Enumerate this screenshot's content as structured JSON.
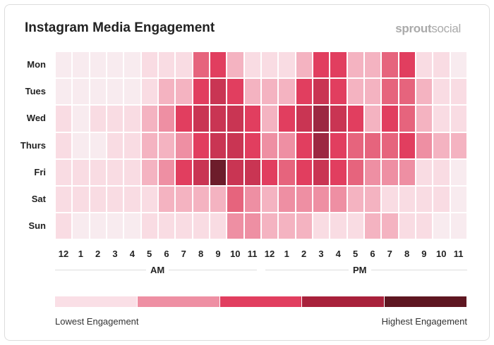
{
  "title": "Instagram Media Engagement",
  "logo": {
    "bold": "sprout",
    "light": "social"
  },
  "chart_data": {
    "type": "heatmap",
    "title": "Instagram Media Engagement",
    "rows": [
      "Mon",
      "Tues",
      "Wed",
      "Thurs",
      "Fri",
      "Sat",
      "Sun"
    ],
    "columns": [
      "12",
      "1",
      "2",
      "3",
      "4",
      "5",
      "6",
      "7",
      "8",
      "9",
      "10",
      "11",
      "12",
      "1",
      "2",
      "3",
      "4",
      "5",
      "6",
      "7",
      "8",
      "9",
      "10",
      "11"
    ],
    "column_groups": [
      "AM",
      "PM"
    ],
    "values": [
      [
        0,
        0,
        0,
        0,
        0,
        1,
        1,
        1,
        4,
        5,
        2,
        1,
        1,
        1,
        2,
        5,
        5,
        2,
        2,
        4,
        5,
        1,
        1,
        0
      ],
      [
        0,
        0,
        0,
        0,
        0,
        1,
        2,
        2,
        5,
        6,
        5,
        2,
        2,
        2,
        5,
        6,
        5,
        2,
        2,
        4,
        4,
        2,
        1,
        1
      ],
      [
        1,
        0,
        1,
        1,
        1,
        2,
        3,
        5,
        6,
        6,
        6,
        5,
        2,
        5,
        6,
        7,
        6,
        5,
        2,
        5,
        4,
        2,
        1,
        1
      ],
      [
        1,
        0,
        0,
        1,
        1,
        2,
        2,
        3,
        5,
        6,
        6,
        5,
        3,
        3,
        5,
        7,
        5,
        4,
        4,
        4,
        5,
        3,
        2,
        2
      ],
      [
        1,
        1,
        1,
        1,
        1,
        2,
        3,
        5,
        6,
        8,
        6,
        6,
        5,
        4,
        5,
        6,
        5,
        4,
        3,
        3,
        3,
        1,
        1,
        0
      ],
      [
        1,
        1,
        1,
        1,
        1,
        1,
        2,
        2,
        2,
        2,
        4,
        3,
        2,
        3,
        3,
        3,
        3,
        2,
        2,
        1,
        1,
        1,
        1,
        0
      ],
      [
        1,
        0,
        0,
        0,
        0,
        1,
        1,
        1,
        1,
        1,
        3,
        3,
        2,
        2,
        2,
        1,
        1,
        1,
        2,
        2,
        1,
        1,
        0,
        0
      ]
    ],
    "scale_min": 0,
    "scale_max": 8,
    "colors": [
      "#f8ebef",
      "#f9dce3",
      "#f4b3c1",
      "#ee8fa3",
      "#e6647d",
      "#e13e5f",
      "#c93553",
      "#9c2842",
      "#6d1d2b"
    ],
    "legend": {
      "low": "Lowest Engagement",
      "high": "Highest Engagement",
      "colors": [
        "#fadfe6",
        "#ee8fa3",
        "#e13e5f",
        "#a8213b",
        "#5e1621"
      ]
    }
  }
}
